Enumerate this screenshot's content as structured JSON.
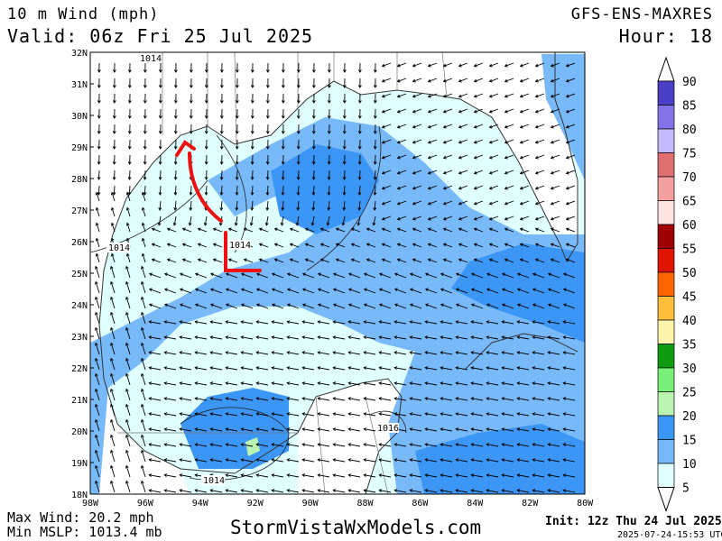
{
  "header": {
    "title": "10 m Wind (mph)",
    "valid": "Valid: 06z Fri 25 Jul 2025",
    "model": "GFS-ENS-MAXRES",
    "hour": "Hour: 18"
  },
  "footer": {
    "max_wind": "Max Wind: 20.2 mph",
    "min_mslp": "Min MSLP: 1013.4 mb",
    "brand": "StormVistaWxModels.com",
    "init": "Init: 12z Thu 24 Jul 2025",
    "timestamp": "2025-07-24-15:53 UTC"
  },
  "map": {
    "lat_labels": [
      "32N",
      "31N",
      "30N",
      "29N",
      "28N",
      "27N",
      "26N",
      "25N",
      "24N",
      "23N",
      "22N",
      "21N",
      "20N",
      "19N",
      "18N"
    ],
    "lon_labels": [
      "98W",
      "96W",
      "94W",
      "92W",
      "90W",
      "88W",
      "86W",
      "84W",
      "82W",
      "80W"
    ],
    "isobar_labels": [
      "1014",
      "1014",
      "1014",
      "1016",
      "1014"
    ],
    "annotation_color": "#ee1111"
  },
  "legend": {
    "labels": [
      "90",
      "85",
      "80",
      "75",
      "70",
      "65",
      "60",
      "55",
      "50",
      "45",
      "40",
      "35",
      "30",
      "25",
      "20",
      "15",
      "10",
      "5"
    ],
    "colors": [
      "#4b3fc7",
      "#8273e6",
      "#c4bbff",
      "#e07070",
      "#f5a0a0",
      "#ffe4e4",
      "#a00000",
      "#e01400",
      "#ff6400",
      "#ffbe3c",
      "#fff5aa",
      "#0f9b0f",
      "#78f078",
      "#b9f5b0",
      "#3c96f5",
      "#78b9fa",
      "#e0ffff"
    ]
  }
}
